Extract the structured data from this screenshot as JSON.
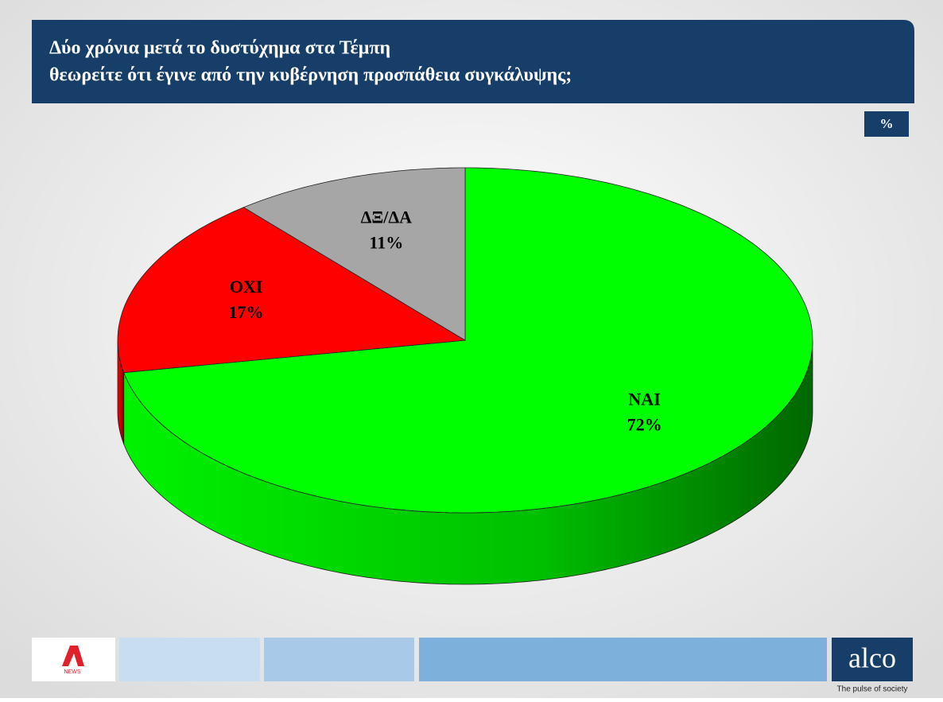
{
  "chart_data": {
    "type": "pie",
    "title": [
      "Δύο χρόνια μετά το δυστύχημα στα Τέμπη",
      "θεωρείτε ότι έγινε  από την κυβέρνηση προσπάθεια συγκάλυψης;"
    ],
    "unit": "%",
    "categories": [
      "ΝΑΙ",
      "ΟΧΙ",
      "ΔΞ/ΔΑ"
    ],
    "values": [
      72,
      17,
      11
    ],
    "value_labels": [
      "72%",
      "17%",
      "11%"
    ],
    "colors": [
      "#00ff00",
      "#ff0000",
      "#a6a6a6"
    ]
  },
  "footer": {
    "channel": "NEWS",
    "brand": "alco",
    "tagline": "The pulse of society"
  }
}
